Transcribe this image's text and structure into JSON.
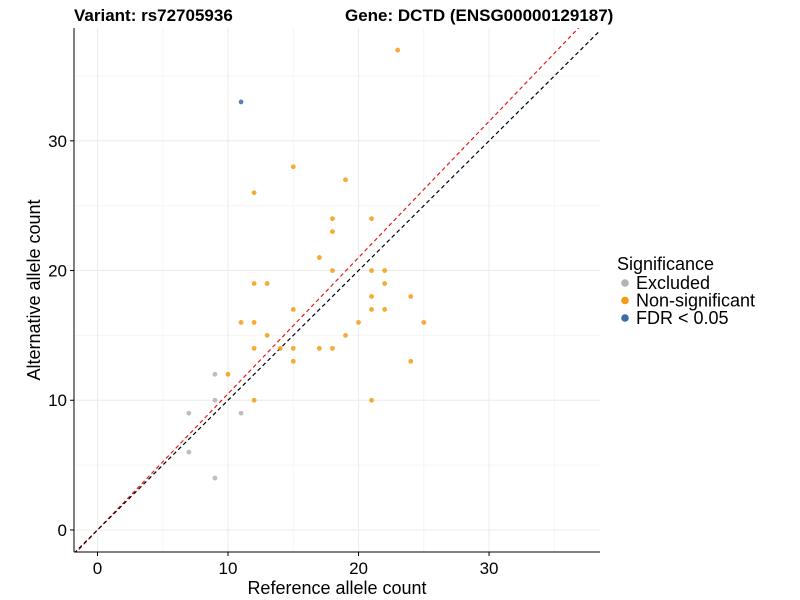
{
  "chart_data": {
    "type": "scatter",
    "title_variant": "Variant: rs72705936",
    "title_gene": "Gene: DCTD (ENSG00000129187)",
    "xlabel": "Reference allele count",
    "ylabel": "Alternative allele count",
    "xlim": [
      -1.8,
      38.5
    ],
    "ylim": [
      -1.7,
      38.7
    ],
    "x_ticks": [
      0,
      10,
      20,
      30
    ],
    "y_ticks": [
      0,
      10,
      20,
      30
    ],
    "x_tick_labels": [
      "0",
      "10",
      "20",
      "30"
    ],
    "y_tick_labels": [
      "0",
      "10",
      "20",
      "30"
    ],
    "grid": true,
    "legend_position": "right",
    "legend_title": "Significance",
    "reference_lines": [
      {
        "name": "identity",
        "slope": 1.0,
        "intercept": 0,
        "color": "#000000",
        "dash": "dashed"
      },
      {
        "name": "fitted",
        "slope": 1.05,
        "intercept": 0,
        "color": "#e41a1c",
        "dash": "dashed"
      }
    ],
    "series": [
      {
        "name": "Excluded",
        "color": "#b3b3b3",
        "points": [
          {
            "x": 7,
            "y": 9
          },
          {
            "x": 7,
            "y": 6
          },
          {
            "x": 9,
            "y": 12
          },
          {
            "x": 9,
            "y": 10
          },
          {
            "x": 9,
            "y": 4
          },
          {
            "x": 11,
            "y": 9
          }
        ]
      },
      {
        "name": "Non-significant",
        "color": "#f39c12",
        "points": [
          {
            "x": 23,
            "y": 37
          },
          {
            "x": 15,
            "y": 28
          },
          {
            "x": 19,
            "y": 27
          },
          {
            "x": 12,
            "y": 26
          },
          {
            "x": 18,
            "y": 24
          },
          {
            "x": 21,
            "y": 24
          },
          {
            "x": 18,
            "y": 23
          },
          {
            "x": 17,
            "y": 21
          },
          {
            "x": 18,
            "y": 20
          },
          {
            "x": 21,
            "y": 20
          },
          {
            "x": 22,
            "y": 20
          },
          {
            "x": 12,
            "y": 19
          },
          {
            "x": 13,
            "y": 19
          },
          {
            "x": 22,
            "y": 19
          },
          {
            "x": 21,
            "y": 18
          },
          {
            "x": 24,
            "y": 18
          },
          {
            "x": 15,
            "y": 17
          },
          {
            "x": 21,
            "y": 17
          },
          {
            "x": 22,
            "y": 17
          },
          {
            "x": 11,
            "y": 16
          },
          {
            "x": 12,
            "y": 16
          },
          {
            "x": 20,
            "y": 16
          },
          {
            "x": 25,
            "y": 16
          },
          {
            "x": 13,
            "y": 15
          },
          {
            "x": 19,
            "y": 15
          },
          {
            "x": 12,
            "y": 14
          },
          {
            "x": 14,
            "y": 14
          },
          {
            "x": 15,
            "y": 14
          },
          {
            "x": 17,
            "y": 14
          },
          {
            "x": 18,
            "y": 14
          },
          {
            "x": 15,
            "y": 13
          },
          {
            "x": 24,
            "y": 13
          },
          {
            "x": 10,
            "y": 12
          },
          {
            "x": 12,
            "y": 10
          },
          {
            "x": 21,
            "y": 10
          }
        ]
      },
      {
        "name": "FDR < 0.05",
        "color": "#3a6ea5",
        "points": [
          {
            "x": 11,
            "y": 33
          }
        ]
      }
    ]
  }
}
